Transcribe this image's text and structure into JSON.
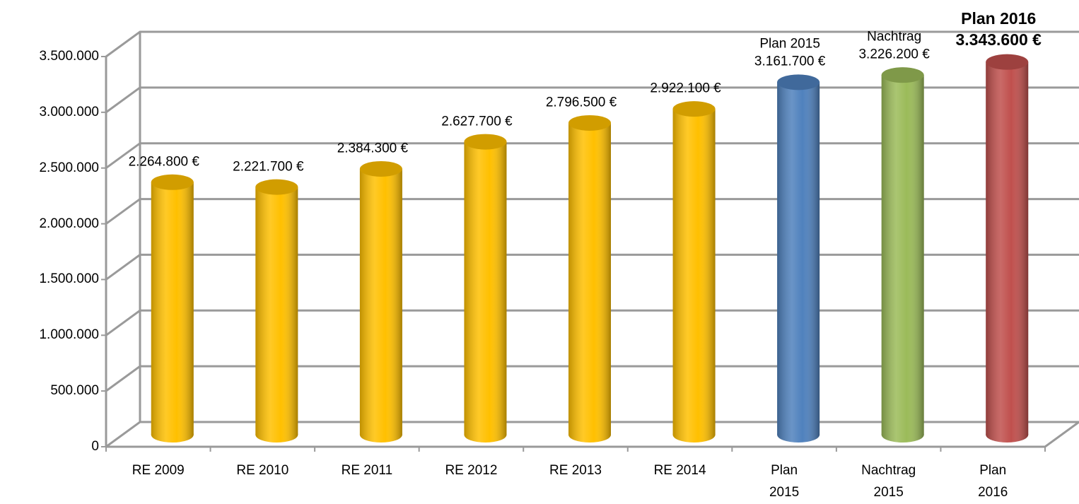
{
  "chart_data": {
    "type": "bar",
    "categories": [
      "RE 2009",
      "RE 2010",
      "RE 2011",
      "RE 2012",
      "RE 2013",
      "RE 2014",
      "Plan\n2015",
      "Nachtrag\n2015",
      "Plan\n2016"
    ],
    "values": [
      2264800,
      2221700,
      2384300,
      2627700,
      2796500,
      2922100,
      3161700,
      3226200,
      3343600
    ],
    "value_labels": [
      "2.264.800 €",
      "2.221.700 €",
      "2.384.300 €",
      "2.627.700 €",
      "2.796.500 €",
      "2.922.100 €",
      "Plan 2015\n3.161.700 €",
      "Nachtrag\n3.226.200 €",
      "Plan 2016\n3.343.600 €"
    ],
    "label_bold": [
      false,
      false,
      false,
      false,
      false,
      false,
      false,
      false,
      true
    ],
    "colors": [
      "#ffc000",
      "#ffc000",
      "#ffc000",
      "#ffc000",
      "#ffc000",
      "#ffc000",
      "#4f81bd",
      "#9bbb59",
      "#c0504d"
    ],
    "ylim": [
      0,
      3500000
    ],
    "yticks": [
      0,
      {
        "value": 500000,
        "label": "500.000"
      },
      {
        "value": 1000000,
        "label": "1.000.000"
      },
      {
        "value": 1500000,
        "label": "1.500.000"
      },
      {
        "value": 2000000,
        "label": "2.000.000"
      },
      {
        "value": 2500000,
        "label": "2.500.000"
      },
      {
        "value": 3000000,
        "label": "3.000.000"
      },
      {
        "value": 3500000,
        "label": "3.500.000"
      }
    ],
    "grid": true
  }
}
